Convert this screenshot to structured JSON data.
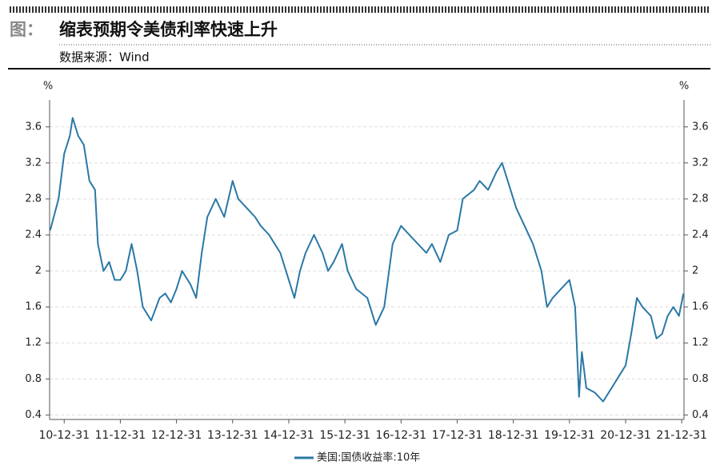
{
  "chart_data": {
    "type": "line",
    "caption_prefix": "图：",
    "title": "缩表预期令美债利率快速上升",
    "subtitle": "数据来源：Wind",
    "ylabel": "%",
    "y2label": "%",
    "grid": true,
    "legend": "bottom",
    "xlim": [
      2010.74,
      2022.04
    ],
    "xticks": [
      {
        "value": 2011.0,
        "label": "10-12-31"
      },
      {
        "value": 2012.0,
        "label": "11-12-31"
      },
      {
        "value": 2013.0,
        "label": "12-12-31"
      },
      {
        "value": 2014.0,
        "label": "13-12-31"
      },
      {
        "value": 2015.0,
        "label": "14-12-31"
      },
      {
        "value": 2016.0,
        "label": "15-12-31"
      },
      {
        "value": 2017.0,
        "label": "16-12-31"
      },
      {
        "value": 2018.0,
        "label": "17-12-31"
      },
      {
        "value": 2019.0,
        "label": "18-12-31"
      },
      {
        "value": 2020.0,
        "label": "19-12-31"
      },
      {
        "value": 2021.0,
        "label": "20-12-31"
      },
      {
        "value": 2022.0,
        "label": "21-12-31"
      }
    ],
    "ylim": [
      0.35,
      3.9
    ],
    "yticks": [
      0.4,
      0.8,
      1.2,
      1.6,
      2,
      2.4,
      2.8,
      3.2,
      3.6
    ],
    "y2lim": [
      0.35,
      3.9
    ],
    "y2ticks": [
      0.4,
      0.8,
      1.2,
      1.6,
      2,
      2.4,
      2.8,
      3.2,
      3.6
    ],
    "x": [
      2010.75,
      2010.9,
      2011.0,
      2011.1,
      2011.15,
      2011.25,
      2011.35,
      2011.45,
      2011.55,
      2011.6,
      2011.7,
      2011.8,
      2011.9,
      2012.0,
      2012.1,
      2012.2,
      2012.3,
      2012.4,
      2012.55,
      2012.7,
      2012.8,
      2012.9,
      2013.0,
      2013.1,
      2013.25,
      2013.35,
      2013.45,
      2013.55,
      2013.7,
      2013.85,
      2014.0,
      2014.1,
      2014.25,
      2014.4,
      2014.5,
      2014.65,
      2014.75,
      2014.85,
      2015.0,
      2015.1,
      2015.2,
      2015.3,
      2015.45,
      2015.6,
      2015.7,
      2015.8,
      2015.95,
      2016.05,
      2016.2,
      2016.4,
      2016.55,
      2016.7,
      2016.85,
      2017.0,
      2017.15,
      2017.3,
      2017.45,
      2017.55,
      2017.7,
      2017.85,
      2018.0,
      2018.1,
      2018.3,
      2018.4,
      2018.55,
      2018.7,
      2018.8,
      2018.95,
      2019.05,
      2019.2,
      2019.35,
      2019.5,
      2019.6,
      2019.7,
      2019.85,
      2020.0,
      2020.1,
      2020.17,
      2020.22,
      2020.3,
      2020.45,
      2020.6,
      2020.75,
      2020.9,
      2021.0,
      2021.1,
      2021.2,
      2021.3,
      2021.45,
      2021.55,
      2021.65,
      2021.75,
      2021.85,
      2021.95,
      2022.03
    ],
    "series": [
      {
        "name": "美国:国债收益率:10年",
        "color": "#2a78a6",
        "values": [
          2.45,
          2.8,
          3.3,
          3.5,
          3.7,
          3.5,
          3.4,
          3.0,
          2.9,
          2.3,
          2.0,
          2.1,
          1.9,
          1.9,
          2.0,
          2.3,
          2.0,
          1.6,
          1.45,
          1.7,
          1.75,
          1.65,
          1.8,
          2.0,
          1.85,
          1.7,
          2.2,
          2.6,
          2.8,
          2.6,
          3.0,
          2.8,
          2.7,
          2.6,
          2.5,
          2.4,
          2.3,
          2.2,
          1.9,
          1.7,
          2.0,
          2.2,
          2.4,
          2.2,
          2.0,
          2.1,
          2.3,
          2.0,
          1.8,
          1.7,
          1.4,
          1.6,
          2.3,
          2.5,
          2.4,
          2.3,
          2.2,
          2.3,
          2.1,
          2.4,
          2.45,
          2.8,
          2.9,
          3.0,
          2.9,
          3.1,
          3.2,
          2.9,
          2.7,
          2.5,
          2.3,
          2.0,
          1.6,
          1.7,
          1.8,
          1.9,
          1.6,
          0.6,
          1.1,
          0.7,
          0.65,
          0.55,
          0.7,
          0.85,
          0.95,
          1.3,
          1.7,
          1.6,
          1.5,
          1.25,
          1.3,
          1.5,
          1.6,
          1.5,
          1.75
        ]
      }
    ]
  }
}
